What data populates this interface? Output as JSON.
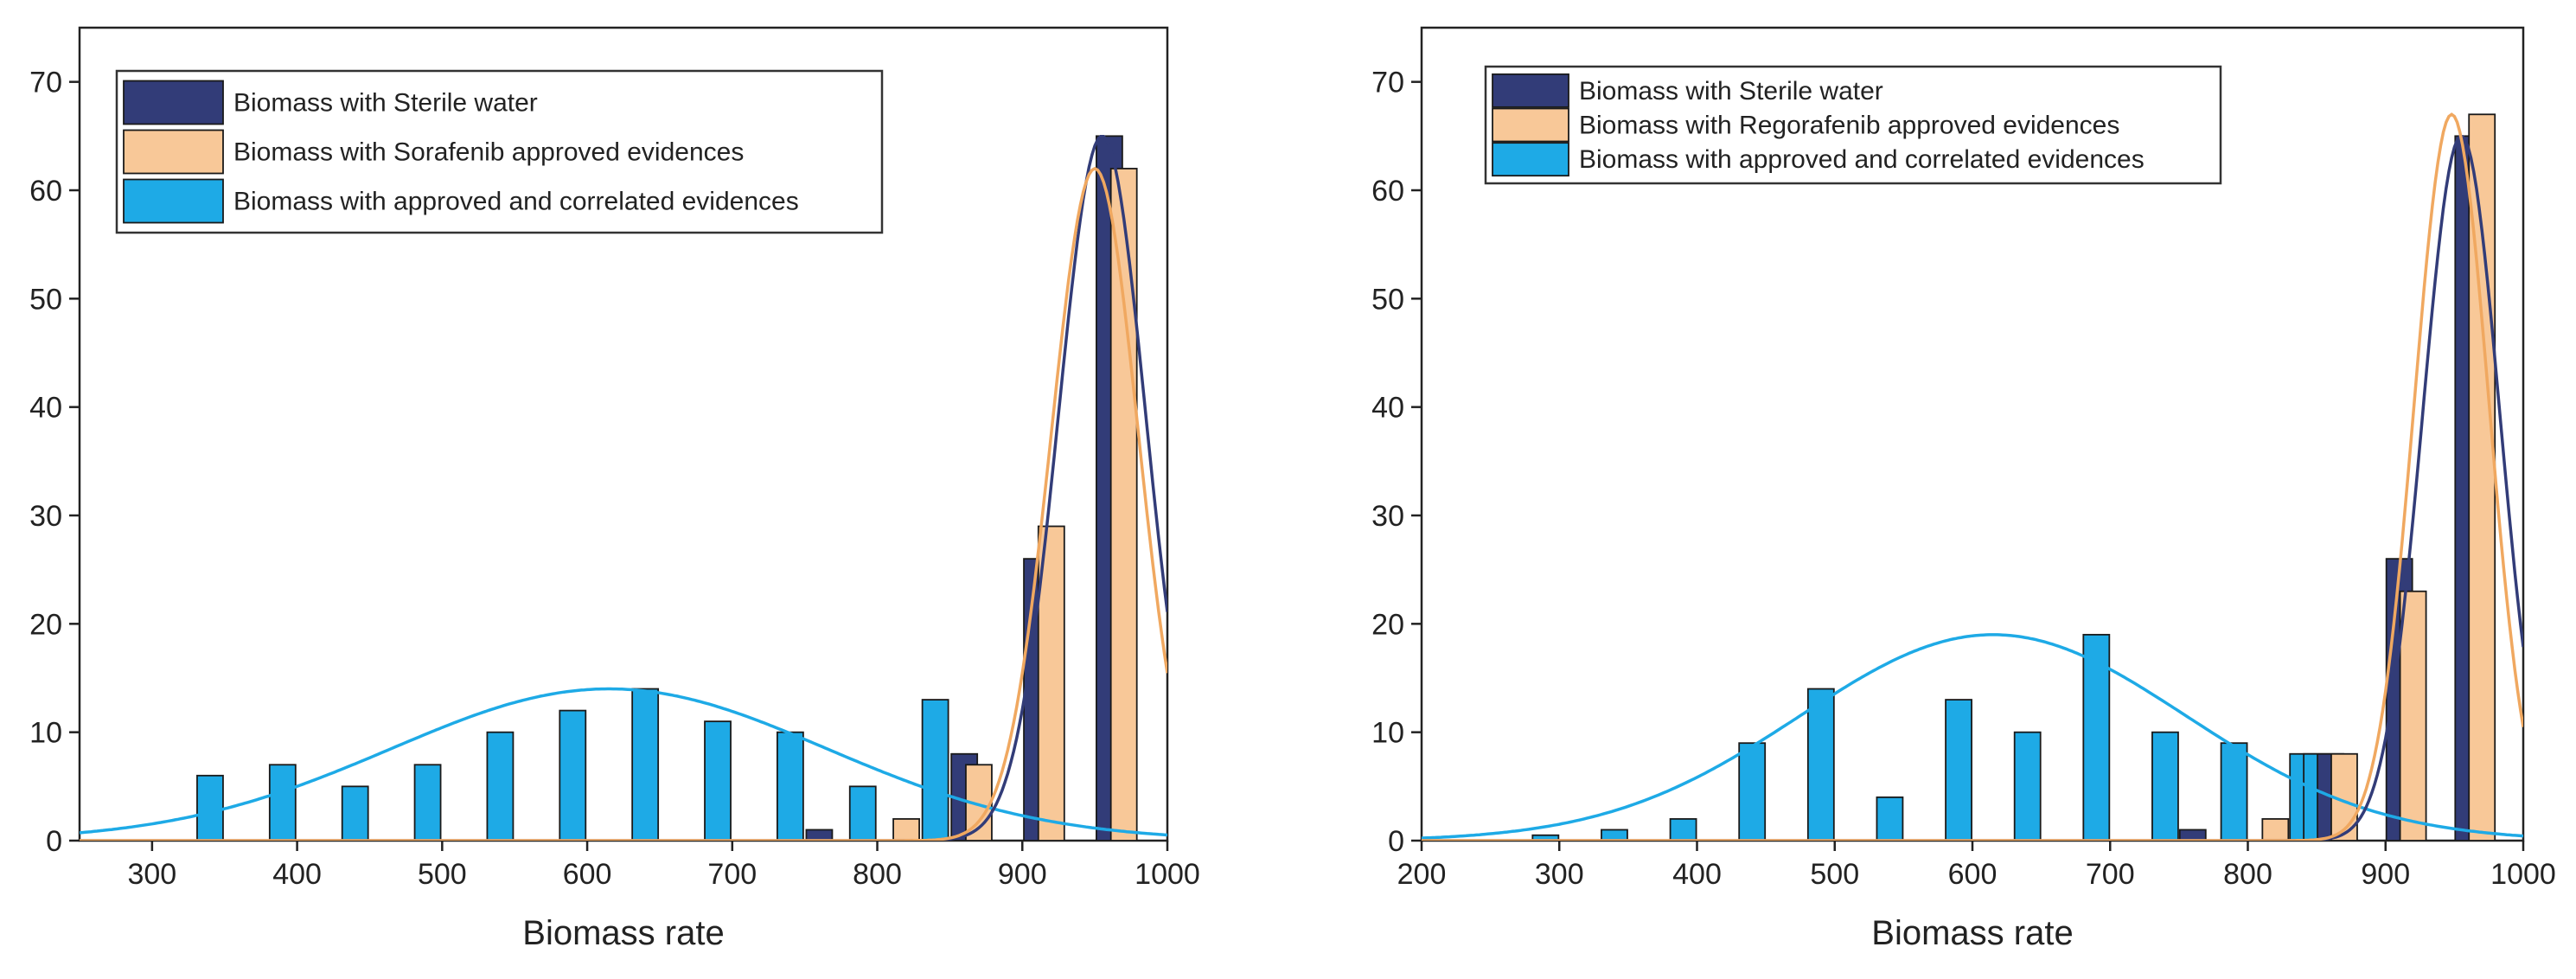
{
  "colors": {
    "sterile": "#323c78",
    "approved": "#f8c898",
    "correlated": "#1eaae6",
    "edge": "#1a1a1a"
  },
  "chart_data": [
    {
      "type": "bar",
      "xlabel": "Biomass rate",
      "ylabel": "",
      "xlim": [
        250,
        1000
      ],
      "ylim": [
        0,
        75
      ],
      "xticks": [
        300,
        400,
        500,
        600,
        700,
        800,
        900,
        1000
      ],
      "yticks": [
        0,
        10,
        20,
        30,
        40,
        50,
        60,
        70
      ],
      "legend_position": "top-left",
      "series": [
        {
          "name": "Biomass with Sterile water",
          "key": "sterile",
          "x": [
            760,
            860,
            910,
            960
          ],
          "values": [
            1,
            8,
            26,
            65
          ],
          "curve": {
            "mu": 955,
            "sigma": 30,
            "amp": 65
          }
        },
        {
          "name": "Biomass with Sorafenib approved evidences",
          "key": "approved",
          "x": [
            820,
            870,
            920,
            970
          ],
          "values": [
            2,
            7,
            29,
            62
          ],
          "curve": {
            "mu": 950,
            "sigma": 30,
            "amp": 62
          }
        },
        {
          "name": "Biomass with approved and correlated evidences",
          "key": "correlated",
          "x": [
            340,
            390,
            440,
            490,
            540,
            590,
            640,
            690,
            740,
            790,
            840
          ],
          "values": [
            6,
            7,
            5,
            7,
            10,
            12,
            14,
            11,
            10,
            5,
            13
          ],
          "curve": {
            "mu": 615,
            "sigma": 150,
            "amp": 14
          }
        }
      ]
    },
    {
      "type": "bar",
      "xlabel": "Biomass rate",
      "ylabel": "",
      "xlim": [
        200,
        1000
      ],
      "ylim": [
        0,
        75
      ],
      "xticks": [
        200,
        300,
        400,
        500,
        600,
        700,
        800,
        900,
        1000
      ],
      "yticks": [
        0,
        10,
        20,
        30,
        40,
        50,
        60,
        70
      ],
      "legend_position": "top-left",
      "series": [
        {
          "name": "Biomass with Sterile water",
          "key": "sterile",
          "x": [
            760,
            860,
            910,
            960
          ],
          "values": [
            1,
            8,
            26,
            65
          ],
          "curve": {
            "mu": 955,
            "sigma": 28,
            "amp": 65
          }
        },
        {
          "name": "Biomass with Regorafenib approved evidences",
          "key": "approved",
          "x": [
            820,
            870,
            920,
            970
          ],
          "values": [
            2,
            8,
            23,
            67
          ],
          "curve": {
            "mu": 948,
            "sigma": 27,
            "amp": 67
          }
        },
        {
          "name": "Biomass with approved and correlated evidences",
          "key": "correlated",
          "x": [
            290,
            340,
            390,
            440,
            490,
            540,
            590,
            640,
            690,
            740,
            790,
            840,
            850
          ],
          "values": [
            0.5,
            1,
            2,
            9,
            14,
            4,
            13,
            10,
            19,
            10,
            9,
            8,
            8
          ],
          "curve": {
            "mu": 615,
            "sigma": 140,
            "amp": 19
          }
        }
      ]
    }
  ]
}
